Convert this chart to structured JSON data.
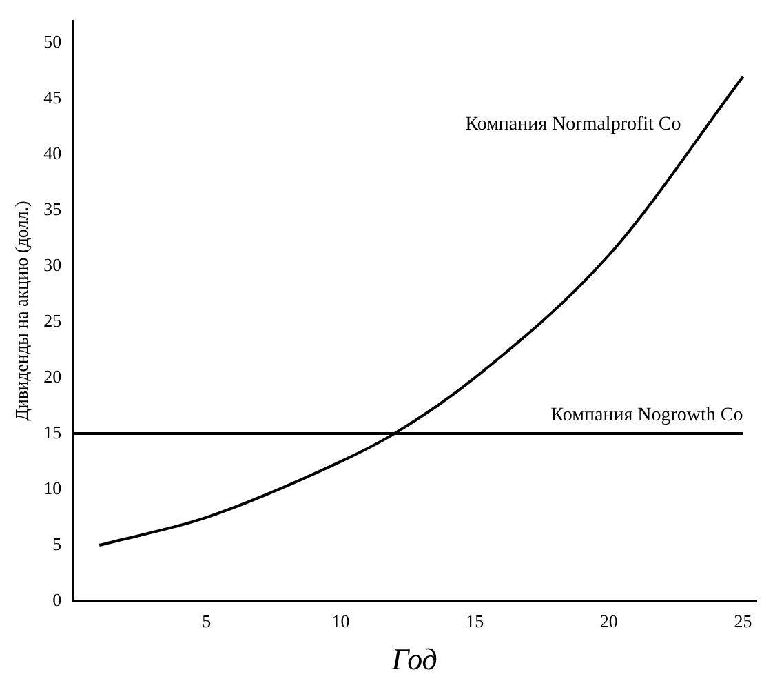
{
  "chart_data": {
    "type": "line",
    "xlabel": "Год",
    "ylabel": "Дивиденды на акцию (долл.)",
    "xlim": [
      0,
      25.5
    ],
    "xticks": [
      5,
      10,
      15,
      20,
      25
    ],
    "ylim": [
      0,
      52
    ],
    "yticks": [
      0,
      5,
      10,
      15,
      20,
      25,
      30,
      35,
      40,
      45,
      50
    ],
    "grid": false,
    "legend": false,
    "marker": "none",
    "line_style": "solid",
    "series": [
      {
        "name": "Компания Normalprofit Co",
        "color": "#000000",
        "x": [
          1,
          5,
          10,
          12,
          15,
          20,
          25
        ],
        "values": [
          5,
          7.5,
          12.5,
          15,
          20,
          31,
          47
        ]
      },
      {
        "name": "Компания Nogrowth Co",
        "color": "#000000",
        "x": [
          0,
          25
        ],
        "values": [
          15,
          15
        ]
      }
    ]
  }
}
